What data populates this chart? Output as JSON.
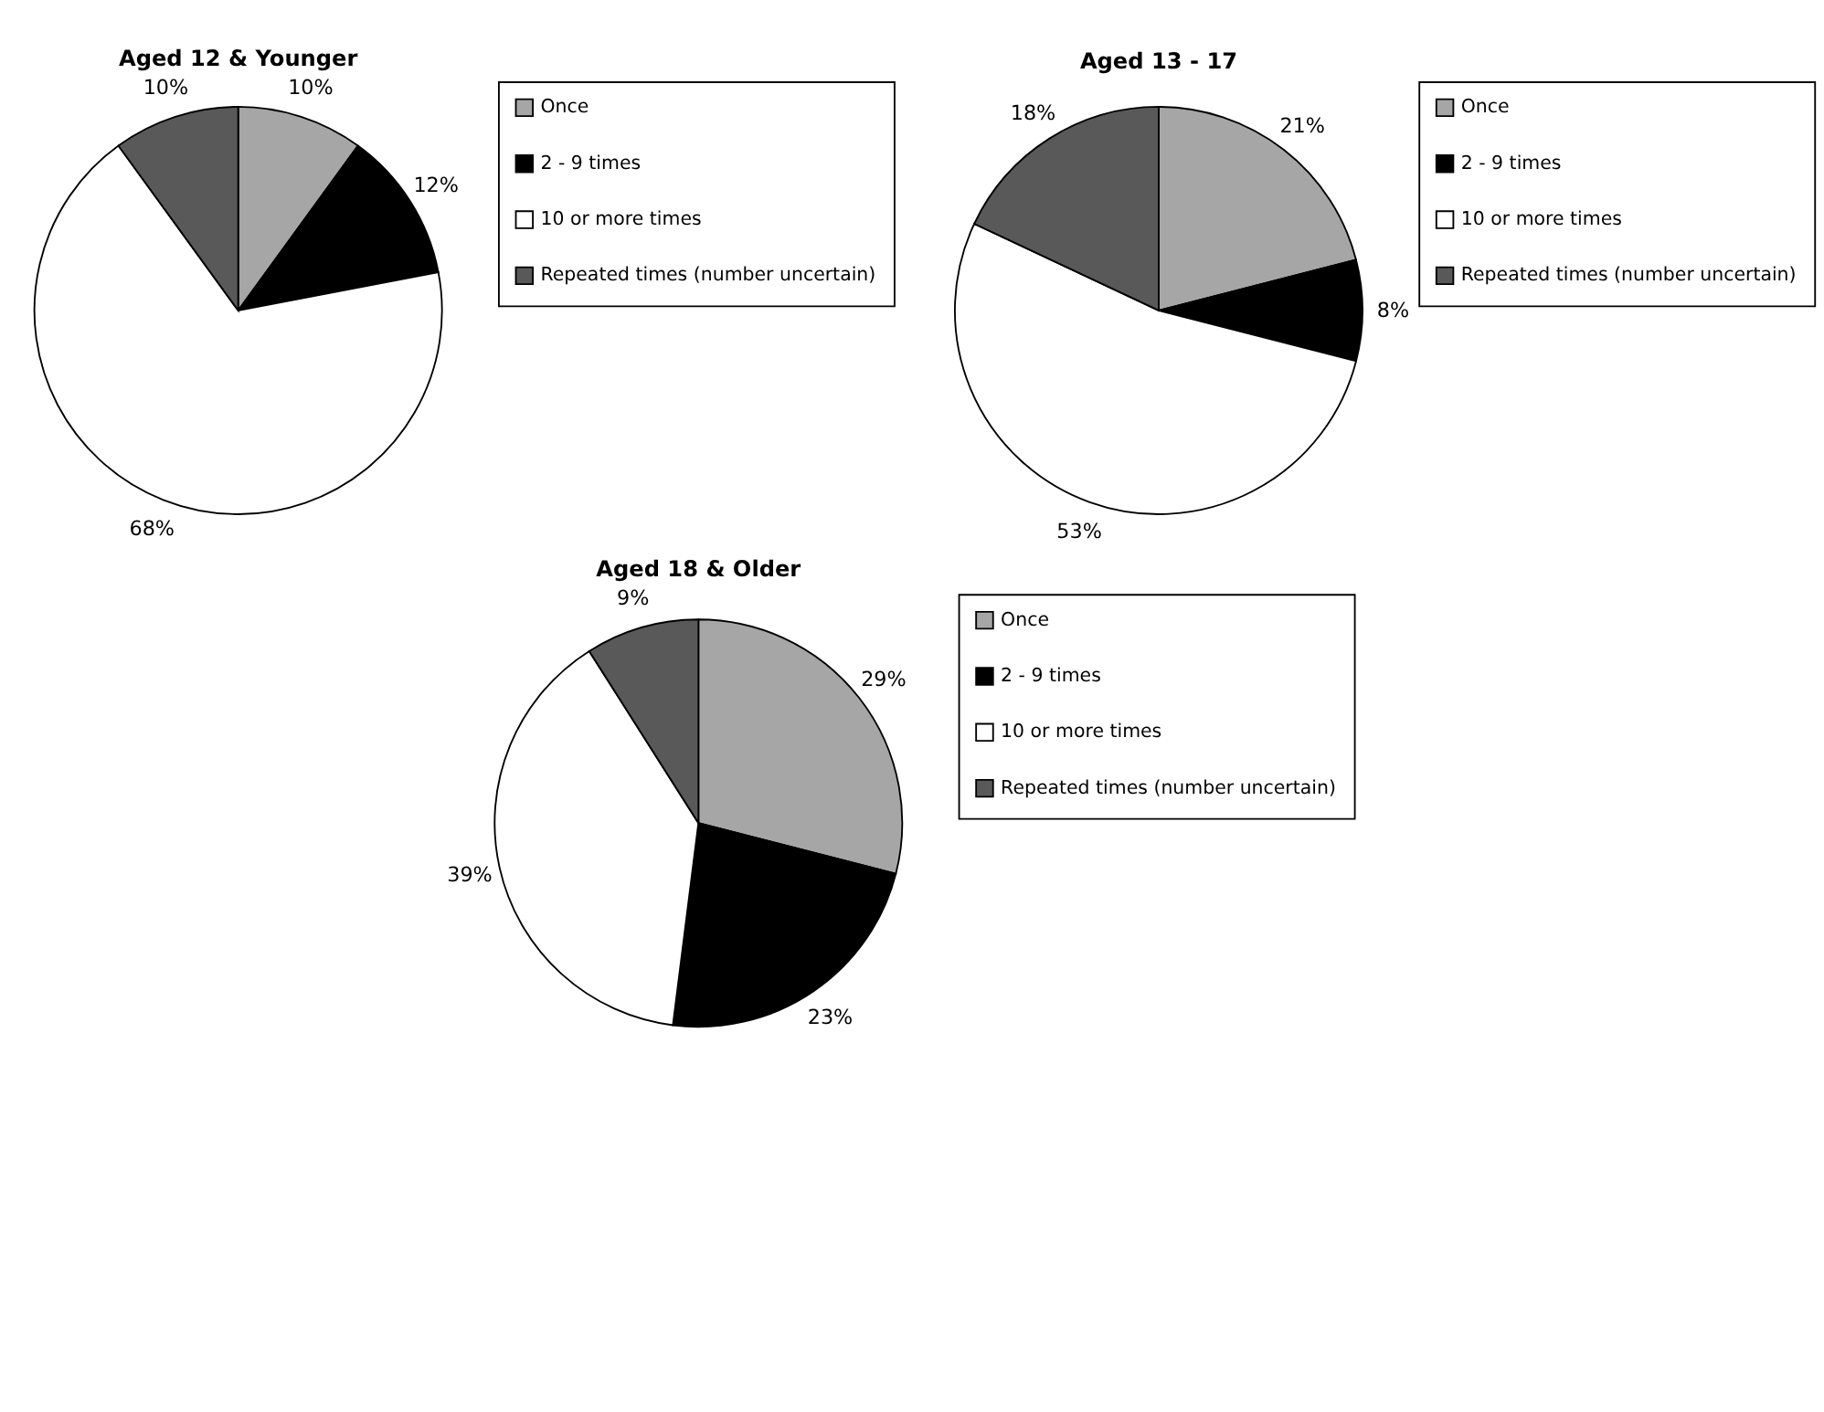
{
  "chart_data": [
    {
      "type": "pie",
      "title": "Aged 12 & Younger",
      "categories": [
        "Once",
        "2 - 9 times",
        "10 or more times",
        "Repeated times (number uncertain)"
      ],
      "values": [
        10,
        12,
        68,
        10
      ],
      "value_labels": [
        "10%",
        "12%",
        "68%",
        "10%"
      ],
      "colors": [
        "#a6a6a6",
        "#000000",
        "#ffffff",
        "#595959"
      ],
      "legend": "right"
    },
    {
      "type": "pie",
      "title": "Aged 13 - 17",
      "categories": [
        "Once",
        "2 - 9 times",
        "10 or more times",
        "Repeated times (number uncertain)"
      ],
      "values": [
        21,
        8,
        53,
        18
      ],
      "value_labels": [
        "21%",
        "8%",
        "53%",
        "18%"
      ],
      "colors": [
        "#a6a6a6",
        "#000000",
        "#ffffff",
        "#595959"
      ],
      "legend": "right"
    },
    {
      "type": "pie",
      "title": "Aged 18 & Older",
      "categories": [
        "Once",
        "2 - 9 times",
        "10 or more times",
        "Repeated times (number uncertain)"
      ],
      "values": [
        29,
        23,
        39,
        9
      ],
      "value_labels": [
        "29%",
        "23%",
        "39%",
        "9%"
      ],
      "colors": [
        "#a6a6a6",
        "#000000",
        "#ffffff",
        "#595959"
      ],
      "legend": "right"
    }
  ]
}
